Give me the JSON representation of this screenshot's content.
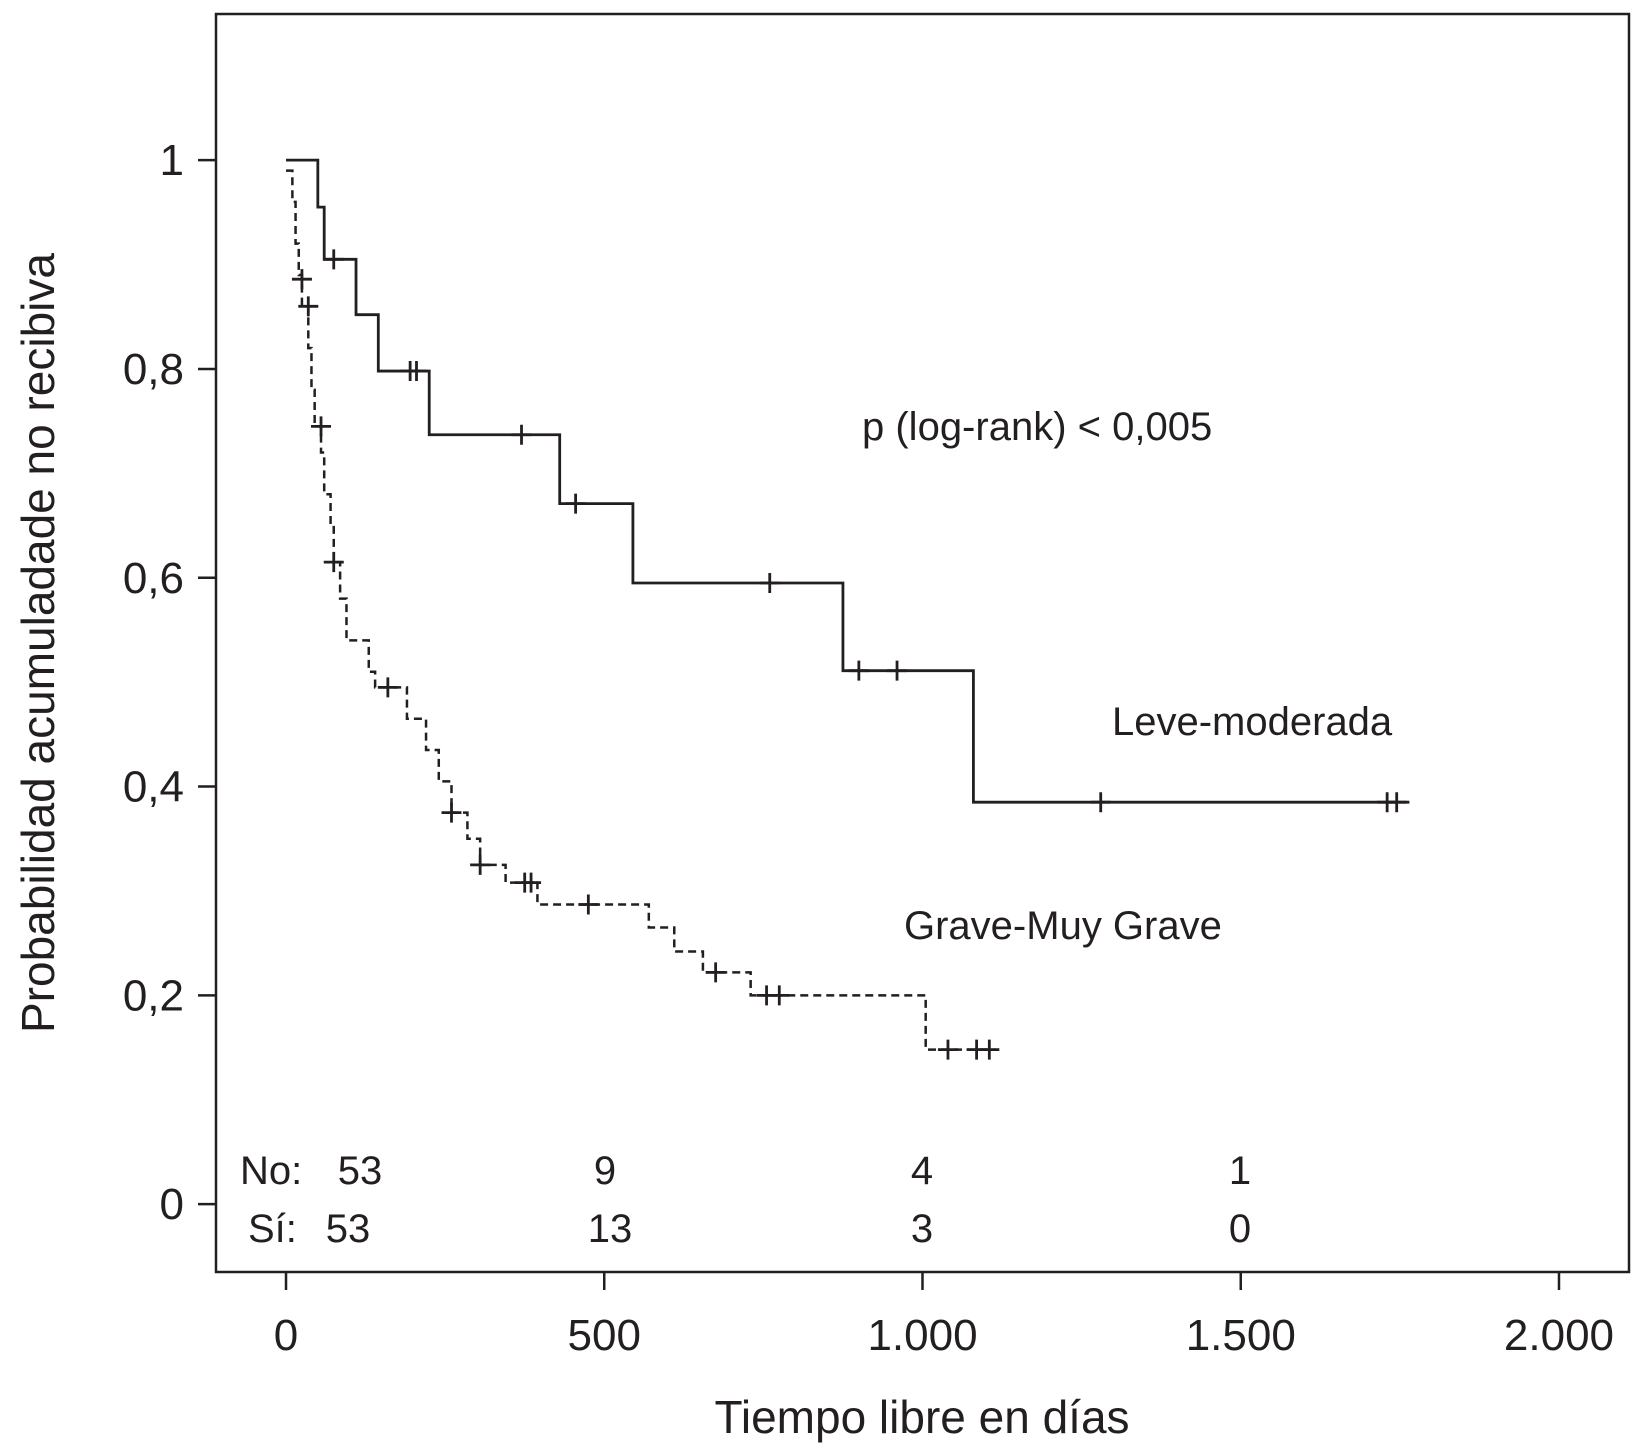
{
  "chart_data": {
    "type": "line",
    "xlabel": "Tiempo libre en días",
    "ylabel": "Probabilidad acumuladade no recibiva",
    "xlim": [
      -110,
      2110
    ],
    "ylim": [
      -0.065,
      1.14
    ],
    "x_ticks": [
      {
        "value": 0,
        "label": "0"
      },
      {
        "value": 500,
        "label": "500"
      },
      {
        "value": 1000,
        "label": "1.000"
      },
      {
        "value": 1500,
        "label": "1.500"
      },
      {
        "value": 2000,
        "label": "2.000"
      }
    ],
    "y_ticks": [
      {
        "value": 0,
        "label": "0"
      },
      {
        "value": 0.2,
        "label": "0,2"
      },
      {
        "value": 0.4,
        "label": "0,4"
      },
      {
        "value": 0.6,
        "label": "0,6"
      },
      {
        "value": 0.8,
        "label": "0,8"
      },
      {
        "value": 1,
        "label": "1"
      }
    ],
    "series": [
      {
        "name": "Leve-moderada",
        "style": "solid",
        "steps": [
          [
            0,
            1.0
          ],
          [
            50,
            0.955
          ],
          [
            60,
            0.905
          ],
          [
            110,
            0.852
          ],
          [
            145,
            0.798
          ],
          [
            225,
            0.737
          ],
          [
            430,
            0.671
          ],
          [
            545,
            0.595
          ],
          [
            875,
            0.511
          ],
          [
            1080,
            0.385
          ],
          [
            1765,
            0.385
          ]
        ],
        "censored": [
          [
            75,
            0.905
          ],
          [
            195,
            0.798
          ],
          [
            205,
            0.798
          ],
          [
            370,
            0.737
          ],
          [
            455,
            0.671
          ],
          [
            760,
            0.595
          ],
          [
            900,
            0.511
          ],
          [
            960,
            0.511
          ],
          [
            1280,
            0.385
          ],
          [
            1730,
            0.385
          ],
          [
            1745,
            0.385
          ]
        ]
      },
      {
        "name": "Grave-Muy Grave",
        "style": "dashed",
        "steps": [
          [
            0,
            0.99
          ],
          [
            10,
            0.96
          ],
          [
            15,
            0.92
          ],
          [
            20,
            0.89
          ],
          [
            25,
            0.86
          ],
          [
            35,
            0.82
          ],
          [
            40,
            0.78
          ],
          [
            45,
            0.745
          ],
          [
            55,
            0.72
          ],
          [
            60,
            0.68
          ],
          [
            70,
            0.65
          ],
          [
            75,
            0.615
          ],
          [
            85,
            0.58
          ],
          [
            95,
            0.54
          ],
          [
            130,
            0.51
          ],
          [
            140,
            0.495
          ],
          [
            190,
            0.465
          ],
          [
            220,
            0.435
          ],
          [
            240,
            0.405
          ],
          [
            260,
            0.375
          ],
          [
            285,
            0.35
          ],
          [
            305,
            0.325
          ],
          [
            345,
            0.308
          ],
          [
            395,
            0.287
          ],
          [
            570,
            0.265
          ],
          [
            610,
            0.242
          ],
          [
            655,
            0.222
          ],
          [
            730,
            0.2
          ],
          [
            1005,
            0.148
          ],
          [
            1115,
            0.148
          ]
        ],
        "censored": [
          [
            25,
            0.886
          ],
          [
            35,
            0.86
          ],
          [
            55,
            0.745
          ],
          [
            75,
            0.615
          ],
          [
            160,
            0.495
          ],
          [
            260,
            0.375
          ],
          [
            305,
            0.325
          ],
          [
            375,
            0.308
          ],
          [
            385,
            0.308
          ],
          [
            475,
            0.287
          ],
          [
            675,
            0.222
          ],
          [
            755,
            0.2
          ],
          [
            775,
            0.2
          ],
          [
            1040,
            0.148
          ],
          [
            1085,
            0.148
          ],
          [
            1105,
            0.148
          ]
        ]
      }
    ],
    "annotations": [
      {
        "text": "p (log-rank) < 0,005"
      }
    ],
    "risk_table": {
      "rows": [
        {
          "label": "No:",
          "values": [
            "53",
            "9",
            "4",
            "1"
          ]
        },
        {
          "label": "Sí:",
          "values": [
            "53",
            "13",
            "3",
            "0"
          ]
        }
      ],
      "times": [
        0,
        500,
        1000,
        1500
      ]
    },
    "grid": false,
    "legend": "inline labels"
  }
}
